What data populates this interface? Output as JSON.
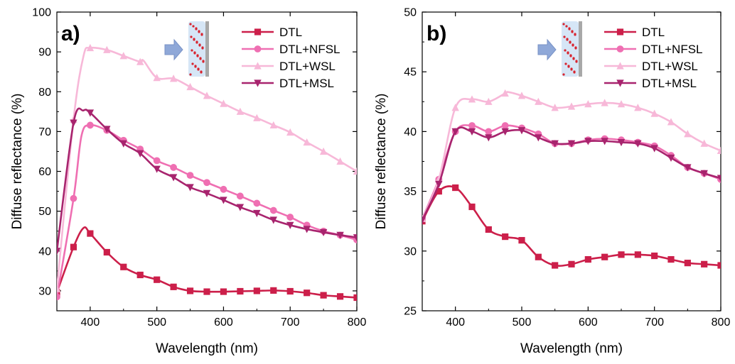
{
  "chart_data": [
    {
      "type": "line",
      "panel_label": "a)",
      "xlabel": "Wavelength (nm)",
      "ylabel": "Diffuse reflectance (%)",
      "xlim": [
        350,
        800
      ],
      "ylim": [
        25,
        100
      ],
      "xticks": [
        400,
        500,
        600,
        700,
        800
      ],
      "yticks": [
        30,
        40,
        50,
        60,
        70,
        80,
        90,
        100
      ],
      "legend": "top-right",
      "series": [
        {
          "name": "DTL",
          "color": "#cc1f4a",
          "marker": "square",
          "x": [
            350,
            375,
            390,
            400,
            425,
            450,
            475,
            500,
            525,
            550,
            575,
            600,
            625,
            650,
            675,
            700,
            725,
            750,
            775,
            800
          ],
          "values": [
            29.6,
            41,
            45.8,
            44.4,
            39.7,
            36,
            34,
            32.8,
            31,
            30,
            29.8,
            29.8,
            29.9,
            30,
            30.1,
            29.9,
            29.5,
            28.9,
            28.6,
            28.3
          ]
        },
        {
          "name": "DTL+NFSL",
          "color": "#ef6fb2",
          "marker": "circle",
          "x": [
            350,
            375,
            387,
            400,
            425,
            450,
            475,
            500,
            525,
            550,
            575,
            600,
            625,
            650,
            675,
            700,
            725,
            750,
            775,
            800
          ],
          "values": [
            28.5,
            53.2,
            69,
            71.6,
            70.3,
            67.8,
            65.6,
            62.7,
            61,
            59,
            57.2,
            55.5,
            53.8,
            52,
            50.2,
            48.5,
            46.5,
            45,
            44,
            42.8
          ]
        },
        {
          "name": "DTL+WSL",
          "color": "#f7b8d8",
          "marker": "triangle-up",
          "x": [
            350,
            375,
            390,
            400,
            425,
            450,
            475,
            480,
            500,
            525,
            550,
            575,
            600,
            625,
            650,
            675,
            700,
            725,
            750,
            775,
            800
          ],
          "values": [
            30.5,
            73,
            89,
            91,
            90.5,
            89,
            87.5,
            87.8,
            83.5,
            83.3,
            81.2,
            79,
            77,
            75,
            73.4,
            71.6,
            69.8,
            67.3,
            65,
            62.5,
            60
          ]
        },
        {
          "name": "DTL+MSL",
          "color": "#a8246e",
          "marker": "triangle-down",
          "x": [
            350,
            375,
            390,
            400,
            425,
            450,
            475,
            500,
            525,
            550,
            575,
            600,
            625,
            650,
            675,
            700,
            725,
            750,
            775,
            800
          ],
          "values": [
            40,
            72.2,
            75.3,
            74.7,
            70.6,
            67,
            64.5,
            60.6,
            58.5,
            56,
            54.5,
            52.8,
            51,
            49.5,
            47.8,
            46.5,
            45.5,
            44.7,
            44,
            43.4
          ]
        }
      ]
    },
    {
      "type": "line",
      "panel_label": "b)",
      "xlabel": "Wavelength (nm)",
      "ylabel": "Diffuse reflectance (%)",
      "xlim": [
        350,
        800
      ],
      "ylim": [
        25,
        50
      ],
      "xticks": [
        400,
        500,
        600,
        700,
        800
      ],
      "yticks": [
        25,
        30,
        35,
        40,
        45,
        50
      ],
      "legend": "top-right",
      "series": [
        {
          "name": "DTL",
          "color": "#cc1f4a",
          "marker": "square",
          "x": [
            350,
            375,
            400,
            425,
            450,
            475,
            500,
            525,
            550,
            575,
            600,
            625,
            650,
            675,
            700,
            725,
            750,
            775,
            800
          ],
          "values": [
            32.5,
            35,
            35.3,
            33.7,
            31.8,
            31.2,
            30.9,
            29.5,
            28.8,
            28.9,
            29.3,
            29.5,
            29.7,
            29.7,
            29.6,
            29.3,
            29,
            28.9,
            28.8
          ]
        },
        {
          "name": "DTL+NFSL",
          "color": "#ef6fb2",
          "marker": "circle",
          "x": [
            350,
            375,
            400,
            425,
            450,
            475,
            500,
            525,
            550,
            575,
            600,
            625,
            650,
            675,
            700,
            725,
            750,
            775,
            800
          ],
          "values": [
            32.7,
            36,
            40,
            40.5,
            40,
            40.5,
            40.3,
            39.8,
            39,
            39,
            39.3,
            39.4,
            39.3,
            39.1,
            38.8,
            38,
            37,
            36.5,
            36
          ]
        },
        {
          "name": "DTL+WSL",
          "color": "#f7b8d8",
          "marker": "triangle-up",
          "x": [
            350,
            375,
            400,
            425,
            450,
            475,
            480,
            500,
            525,
            550,
            575,
            600,
            625,
            650,
            675,
            700,
            725,
            750,
            775,
            800
          ],
          "values": [
            32.7,
            36,
            42,
            42.7,
            42.5,
            43.2,
            43.3,
            43,
            42.5,
            42,
            42.1,
            42.3,
            42.4,
            42.3,
            42,
            41.5,
            40.8,
            39.8,
            39,
            38.4
          ]
        },
        {
          "name": "DTL+MSL",
          "color": "#a8246e",
          "marker": "triangle-down",
          "x": [
            350,
            375,
            400,
            425,
            450,
            475,
            500,
            525,
            550,
            575,
            600,
            625,
            650,
            675,
            700,
            725,
            750,
            775,
            800
          ],
          "values": [
            32.6,
            35.6,
            40,
            40,
            39.5,
            40,
            40.1,
            39.5,
            39,
            39,
            39.2,
            39.2,
            39.1,
            39,
            38.6,
            37.8,
            37,
            36.5,
            36.1
          ]
        }
      ]
    }
  ]
}
